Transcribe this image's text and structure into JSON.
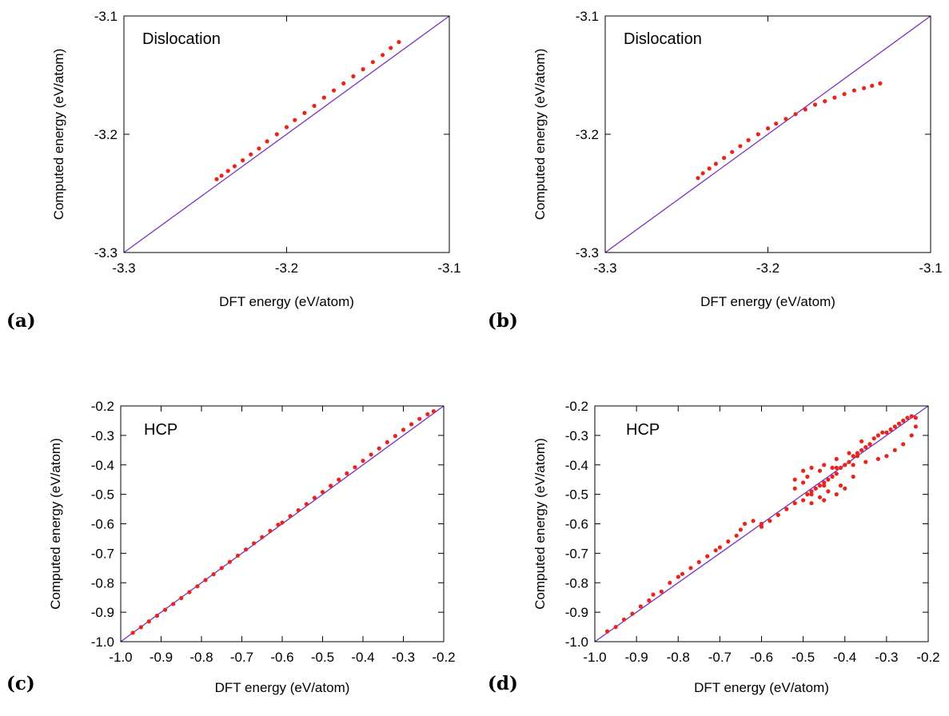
{
  "colors": {
    "diagonal": "#7b2fbf",
    "points": "#e8251b",
    "frame": "#000000"
  },
  "chart_data": [
    {
      "type": "scatter",
      "panel_label": "(a)",
      "annotation": "Dislocation",
      "xlabel": "DFT energy (eV/atom)",
      "ylabel": "Computed energy (eV/atom)",
      "xlim": [
        -3.3,
        -3.1
      ],
      "ylim": [
        -3.3,
        -3.1
      ],
      "xticks": [
        -3.3,
        -3.2,
        -3.1
      ],
      "yticks": [
        -3.3,
        -3.2,
        -3.1
      ],
      "xtick_labels": [
        "-3.3",
        "-3.2",
        "-3.1"
      ],
      "ytick_labels": [
        "-3.3",
        "-3.2",
        "-3.1"
      ],
      "diagonal": true,
      "grid": false,
      "series": [
        {
          "x": [
            -3.243,
            -3.24,
            -3.236,
            -3.232,
            -3.227,
            -3.222,
            -3.217,
            -3.212,
            -3.206,
            -3.2,
            -3.195,
            -3.189,
            -3.183,
            -3.177,
            -3.171,
            -3.165,
            -3.159,
            -3.153,
            -3.147,
            -3.141,
            -3.136,
            -3.131
          ],
          "y": [
            -3.238,
            -3.235,
            -3.231,
            -3.227,
            -3.222,
            -3.217,
            -3.212,
            -3.206,
            -3.2,
            -3.194,
            -3.188,
            -3.182,
            -3.176,
            -3.169,
            -3.163,
            -3.157,
            -3.151,
            -3.145,
            -3.139,
            -3.133,
            -3.127,
            -3.122
          ]
        }
      ]
    },
    {
      "type": "scatter",
      "panel_label": "(b)",
      "annotation": "Dislocation",
      "xlabel": "DFT energy (eV/atom)",
      "ylabel": "Computed energy (eV/atom)",
      "xlim": [
        -3.3,
        -3.1
      ],
      "ylim": [
        -3.3,
        -3.1
      ],
      "xticks": [
        -3.3,
        -3.2,
        -3.1
      ],
      "yticks": [
        -3.3,
        -3.2,
        -3.1
      ],
      "xtick_labels": [
        "-3.3",
        "-3.2",
        "-3.1"
      ],
      "ytick_labels": [
        "-3.3",
        "-3.2",
        "-3.1"
      ],
      "diagonal": true,
      "grid": false,
      "series": [
        {
          "x": [
            -3.243,
            -3.24,
            -3.236,
            -3.232,
            -3.227,
            -3.222,
            -3.217,
            -3.212,
            -3.206,
            -3.2,
            -3.195,
            -3.189,
            -3.183,
            -3.177,
            -3.171,
            -3.165,
            -3.159,
            -3.153,
            -3.147,
            -3.141,
            -3.136,
            -3.131
          ],
          "y": [
            -3.237,
            -3.233,
            -3.229,
            -3.225,
            -3.22,
            -3.215,
            -3.21,
            -3.205,
            -3.2,
            -3.195,
            -3.191,
            -3.187,
            -3.183,
            -3.179,
            -3.175,
            -3.172,
            -3.169,
            -3.166,
            -3.163,
            -3.161,
            -3.159,
            -3.157
          ]
        }
      ]
    },
    {
      "type": "scatter",
      "panel_label": "(c)",
      "annotation": "HCP",
      "xlabel": "DFT energy (eV/atom)",
      "ylabel": "Computed energy (eV/atom)",
      "xlim": [
        -1.0,
        -0.2
      ],
      "ylim": [
        -1.0,
        -0.2
      ],
      "xticks": [
        -1.0,
        -0.9,
        -0.8,
        -0.7,
        -0.6,
        -0.5,
        -0.4,
        -0.3,
        -0.2
      ],
      "yticks": [
        -1.0,
        -0.9,
        -0.8,
        -0.7,
        -0.6,
        -0.5,
        -0.4,
        -0.3,
        -0.2
      ],
      "xtick_labels": [
        "-1.0",
        "-0.9",
        "-0.8",
        "-0.7",
        "-0.6",
        "-0.5",
        "-0.4",
        "-0.3",
        "-0.2"
      ],
      "ytick_labels": [
        "-1.0",
        "-0.9",
        "-0.8",
        "-0.7",
        "-0.6",
        "-0.5",
        "-0.4",
        "-0.3",
        "-0.2"
      ],
      "diagonal": true,
      "grid": false,
      "series": [
        {
          "x": [
            -0.97,
            -0.95,
            -0.93,
            -0.91,
            -0.89,
            -0.87,
            -0.85,
            -0.83,
            -0.81,
            -0.79,
            -0.77,
            -0.75,
            -0.73,
            -0.71,
            -0.69,
            -0.67,
            -0.65,
            -0.63,
            -0.61,
            -0.6,
            -0.58,
            -0.56,
            -0.54,
            -0.52,
            -0.5,
            -0.48,
            -0.46,
            -0.44,
            -0.42,
            -0.4,
            -0.38,
            -0.36,
            -0.34,
            -0.32,
            -0.3,
            -0.28,
            -0.26,
            -0.24,
            -0.225
          ],
          "y": [
            -0.97,
            -0.951,
            -0.931,
            -0.912,
            -0.892,
            -0.872,
            -0.852,
            -0.832,
            -0.812,
            -0.791,
            -0.771,
            -0.75,
            -0.729,
            -0.708,
            -0.687,
            -0.666,
            -0.645,
            -0.624,
            -0.603,
            -0.596,
            -0.574,
            -0.554,
            -0.533,
            -0.512,
            -0.492,
            -0.471,
            -0.45,
            -0.429,
            -0.408,
            -0.386,
            -0.365,
            -0.344,
            -0.323,
            -0.302,
            -0.281,
            -0.262,
            -0.244,
            -0.228,
            -0.218
          ]
        }
      ]
    },
    {
      "type": "scatter",
      "panel_label": "(d)",
      "annotation": "HCP",
      "xlabel": "DFT energy (eV/atom)",
      "ylabel": "Computed energy (eV/atom)",
      "xlim": [
        -1.0,
        -0.2
      ],
      "ylim": [
        -1.0,
        -0.2
      ],
      "xticks": [
        -1.0,
        -0.9,
        -0.8,
        -0.7,
        -0.6,
        -0.5,
        -0.4,
        -0.3,
        -0.2
      ],
      "yticks": [
        -1.0,
        -0.9,
        -0.8,
        -0.7,
        -0.6,
        -0.5,
        -0.4,
        -0.3,
        -0.2
      ],
      "xtick_labels": [
        "-1.0",
        "-0.9",
        "-0.8",
        "-0.7",
        "-0.6",
        "-0.5",
        "-0.4",
        "-0.3",
        "-0.2"
      ],
      "ytick_labels": [
        "-1.0",
        "-0.9",
        "-0.8",
        "-0.7",
        "-0.6",
        "-0.5",
        "-0.4",
        "-0.3",
        "-0.2"
      ],
      "diagonal": true,
      "grid": false,
      "series": [
        {
          "x": [
            -0.97,
            -0.95,
            -0.93,
            -0.91,
            -0.89,
            -0.87,
            -0.86,
            -0.84,
            -0.82,
            -0.8,
            -0.79,
            -0.77,
            -0.75,
            -0.73,
            -0.71,
            -0.7,
            -0.68,
            -0.66,
            -0.65,
            -0.64,
            -0.62,
            -0.6,
            -0.6,
            -0.58,
            -0.56,
            -0.54,
            -0.52,
            -0.5,
            -0.49,
            -0.48,
            -0.47,
            -0.46,
            -0.45,
            -0.44,
            -0.43,
            -0.42,
            -0.41,
            -0.4,
            -0.39,
            -0.38,
            -0.37,
            -0.36,
            -0.35,
            -0.34,
            -0.33,
            -0.32,
            -0.31,
            -0.3,
            -0.29,
            -0.28,
            -0.27,
            -0.26,
            -0.25,
            -0.24,
            -0.23,
            -0.23,
            -0.24,
            -0.26,
            -0.28,
            -0.3,
            -0.32,
            -0.35,
            -0.38,
            -0.42,
            -0.45,
            -0.48,
            -0.5,
            -0.52,
            -0.49,
            -0.46,
            -0.43,
            -0.4,
            -0.37,
            -0.34,
            -0.36,
            -0.39,
            -0.42,
            -0.45,
            -0.48,
            -0.46,
            -0.44,
            -0.41,
            -0.38,
            -0.5,
            -0.52,
            -0.48,
            -0.45,
            -0.42,
            -0.4
          ],
          "y": [
            -0.965,
            -0.95,
            -0.925,
            -0.905,
            -0.88,
            -0.86,
            -0.84,
            -0.83,
            -0.8,
            -0.78,
            -0.77,
            -0.75,
            -0.73,
            -0.71,
            -0.69,
            -0.68,
            -0.66,
            -0.64,
            -0.62,
            -0.6,
            -0.59,
            -0.6,
            -0.61,
            -0.59,
            -0.57,
            -0.55,
            -0.53,
            -0.52,
            -0.5,
            -0.49,
            -0.48,
            -0.47,
            -0.46,
            -0.45,
            -0.44,
            -0.43,
            -0.41,
            -0.4,
            -0.39,
            -0.37,
            -0.36,
            -0.35,
            -0.34,
            -0.33,
            -0.31,
            -0.3,
            -0.29,
            -0.29,
            -0.28,
            -0.27,
            -0.26,
            -0.25,
            -0.24,
            -0.235,
            -0.24,
            -0.27,
            -0.3,
            -0.33,
            -0.35,
            -0.37,
            -0.38,
            -0.39,
            -0.4,
            -0.41,
            -0.4,
            -0.41,
            -0.42,
            -0.45,
            -0.44,
            -0.42,
            -0.41,
            -0.4,
            -0.37,
            -0.33,
            -0.32,
            -0.36,
            -0.38,
            -0.47,
            -0.5,
            -0.51,
            -0.49,
            -0.47,
            -0.44,
            -0.46,
            -0.48,
            -0.53,
            -0.52,
            -0.5,
            -0.48
          ]
        }
      ]
    }
  ]
}
